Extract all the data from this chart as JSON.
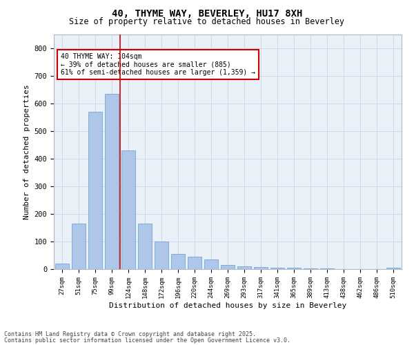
{
  "title1": "40, THYME WAY, BEVERLEY, HU17 8XH",
  "title2": "Size of property relative to detached houses in Beverley",
  "xlabel": "Distribution of detached houses by size in Beverley",
  "ylabel": "Number of detached properties",
  "categories": [
    "27sqm",
    "51sqm",
    "75sqm",
    "99sqm",
    "124sqm",
    "148sqm",
    "172sqm",
    "196sqm",
    "220sqm",
    "244sqm",
    "269sqm",
    "293sqm",
    "317sqm",
    "341sqm",
    "365sqm",
    "389sqm",
    "413sqm",
    "438sqm",
    "462sqm",
    "486sqm",
    "510sqm"
  ],
  "values": [
    20,
    165,
    570,
    635,
    430,
    165,
    100,
    55,
    45,
    35,
    15,
    10,
    8,
    5,
    4,
    3,
    2,
    1,
    1,
    1,
    5
  ],
  "bar_color": "#aec6e8",
  "bar_edge_color": "#5b9bd5",
  "vline_x_idx": 3,
  "vline_color": "#cc0000",
  "annotation_text": "40 THYME WAY: 104sqm\n← 39% of detached houses are smaller (885)\n61% of semi-detached houses are larger (1,359) →",
  "annotation_box_color": "#ffffff",
  "annotation_box_edge": "#cc0000",
  "ylim": [
    0,
    850
  ],
  "yticks": [
    0,
    100,
    200,
    300,
    400,
    500,
    600,
    700,
    800
  ],
  "grid_color": "#d0d8e8",
  "bg_color": "#eaf0f8",
  "footer1": "Contains HM Land Registry data © Crown copyright and database right 2025.",
  "footer2": "Contains public sector information licensed under the Open Government Licence v3.0."
}
